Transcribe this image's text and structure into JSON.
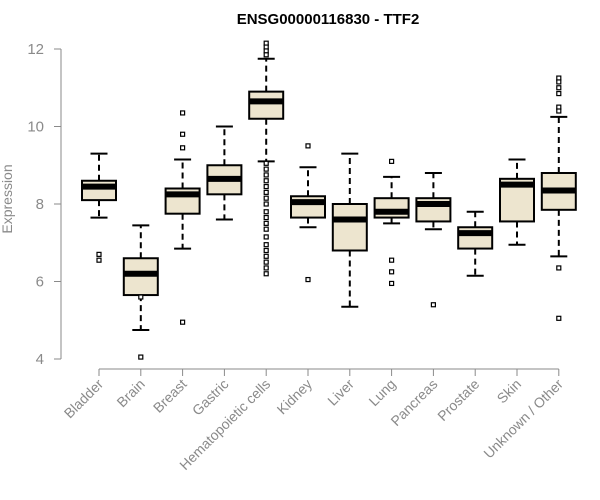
{
  "chart_data": {
    "type": "boxplot",
    "title": "ENSG00000116830 - TTF2",
    "xlabel": "",
    "ylabel": "Expression",
    "ylim": [
      4,
      12.2
    ],
    "yticks": [
      4,
      6,
      8,
      10,
      12
    ],
    "box_fill": "#ede5cf",
    "categories": [
      "Bladder",
      "Brain",
      "Breast",
      "Gastric",
      "Hematopoietic cells",
      "Kidney",
      "Liver",
      "Lung",
      "Pancreas",
      "Prostate",
      "Skin",
      "Unknown / Other"
    ],
    "boxes": [
      {
        "category": "Bladder",
        "whisker_low": 7.65,
        "q1": 8.1,
        "median": 8.45,
        "q3": 8.6,
        "whisker_high": 9.3,
        "outliers": [
          6.7,
          6.55
        ]
      },
      {
        "category": "Brain",
        "whisker_low": 4.75,
        "q1": 5.65,
        "median": 6.2,
        "q3": 6.6,
        "whisker_high": 7.45,
        "outliers": [
          5.6,
          4.05
        ]
      },
      {
        "category": "Breast",
        "whisker_low": 6.85,
        "q1": 7.75,
        "median": 8.25,
        "q3": 8.4,
        "whisker_high": 9.15,
        "outliers": [
          10.35,
          9.8,
          9.45,
          4.95
        ]
      },
      {
        "category": "Gastric",
        "whisker_low": 7.6,
        "q1": 8.25,
        "median": 8.65,
        "q3": 9.0,
        "whisker_high": 10.0,
        "outliers": []
      },
      {
        "category": "Hematopoietic cells",
        "whisker_low": 9.1,
        "q1": 10.2,
        "median": 10.65,
        "q3": 10.9,
        "whisker_high": 11.75,
        "outliers": [
          12.15,
          12.05,
          11.95,
          11.85,
          9.05,
          8.9,
          8.75,
          8.6,
          8.45,
          8.3,
          8.15,
          8.0,
          7.8,
          7.65,
          7.5,
          7.35,
          7.15,
          6.95,
          6.8,
          6.65,
          6.5,
          6.35,
          6.2
        ]
      },
      {
        "category": "Kidney",
        "whisker_low": 7.4,
        "q1": 7.65,
        "median": 8.05,
        "q3": 8.2,
        "whisker_high": 8.95,
        "outliers": [
          9.5,
          6.05
        ]
      },
      {
        "category": "Liver",
        "whisker_low": 5.35,
        "q1": 6.8,
        "median": 7.6,
        "q3": 8.0,
        "whisker_high": 9.3,
        "outliers": []
      },
      {
        "category": "Lung",
        "whisker_low": 7.5,
        "q1": 7.65,
        "median": 7.8,
        "q3": 8.15,
        "whisker_high": 8.7,
        "outliers": [
          9.1,
          6.55,
          6.25,
          5.95
        ]
      },
      {
        "category": "Pancreas",
        "whisker_low": 7.35,
        "q1": 7.55,
        "median": 8.0,
        "q3": 8.15,
        "whisker_high": 8.8,
        "outliers": [
          5.4
        ]
      },
      {
        "category": "Prostate",
        "whisker_low": 6.15,
        "q1": 6.85,
        "median": 7.25,
        "q3": 7.4,
        "whisker_high": 7.8,
        "outliers": []
      },
      {
        "category": "Skin",
        "whisker_low": 6.95,
        "q1": 7.55,
        "median": 8.5,
        "q3": 8.65,
        "whisker_high": 9.15,
        "outliers": []
      },
      {
        "category": "Unknown / Other",
        "whisker_low": 6.65,
        "q1": 7.85,
        "median": 8.35,
        "q3": 8.8,
        "whisker_high": 10.25,
        "outliers": [
          11.25,
          11.15,
          11.0,
          10.85,
          10.5,
          10.4,
          6.35,
          5.05
        ]
      }
    ]
  }
}
